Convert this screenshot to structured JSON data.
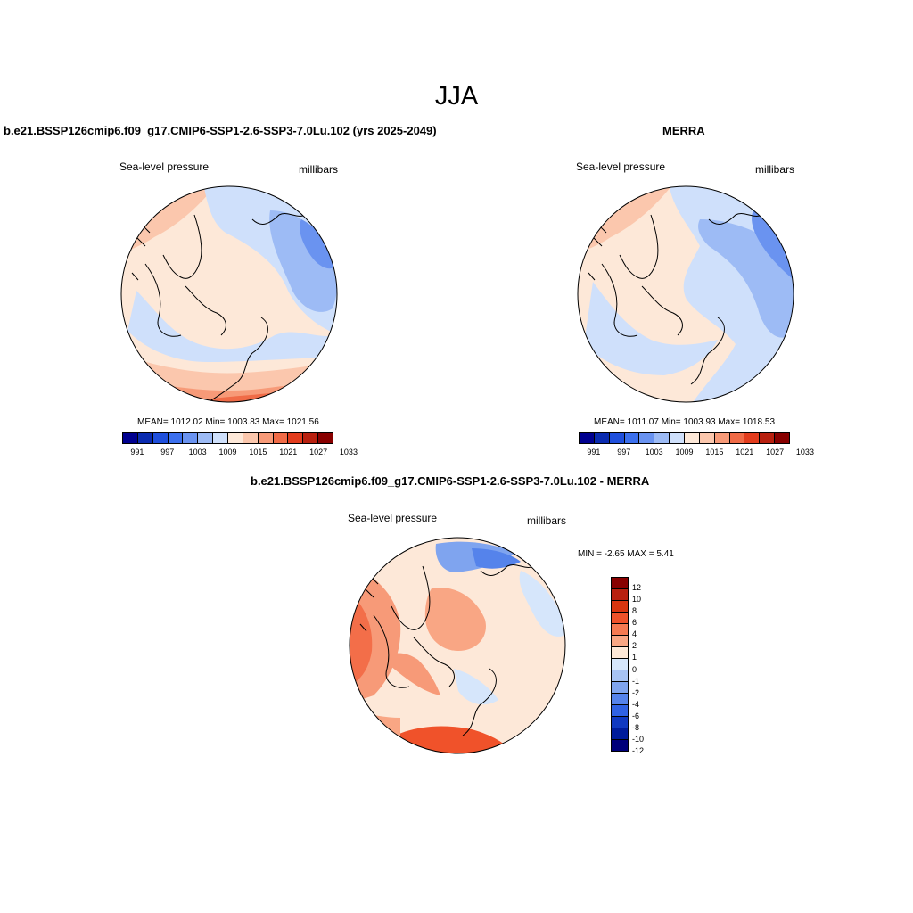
{
  "title": "JJA",
  "panel1": {
    "title": "b.e21.BSSP126cmip6.f09_g17.CMIP6-SSP1-2.6-SSP3-7.0Lu.102 (yrs 2025-2049)",
    "left_label": "Sea-level pressure",
    "right_label": "millibars",
    "stats": "MEAN= 1012.02  Min= 1003.83  Max= 1021.56"
  },
  "panel2": {
    "title": "MERRA",
    "left_label": "Sea-level pressure",
    "right_label": "millibars",
    "stats": "MEAN= 1011.07  Min= 1003.93  Max= 1018.53"
  },
  "panel3": {
    "title": "b.e21.BSSP126cmip6.f09_g17.CMIP6-SSP1-2.6-SSP3-7.0Lu.102 - MERRA",
    "left_label": "Sea-level pressure",
    "right_label": "millibars",
    "stats": "MIN =  -2.65 MAX =   5.41"
  },
  "slp_colorbar": {
    "colors": [
      "#00008f",
      "#0a2bb0",
      "#1f4fdc",
      "#3c70ee",
      "#6a93f0",
      "#9dbbf5",
      "#cfe0fb",
      "#fde8d8",
      "#fbc7ad",
      "#f79a78",
      "#f06b47",
      "#e23c1d",
      "#b8200f",
      "#880000"
    ],
    "tick_labels": [
      "991",
      "997",
      "1003",
      "1009",
      "1015",
      "1021",
      "1027",
      "1033"
    ]
  },
  "diff_colorbar": {
    "colors": [
      "#880000",
      "#b8200f",
      "#d9350f",
      "#f0522a",
      "#f67a52",
      "#f9a684",
      "#fde8d8",
      "#d6e6fb",
      "#a7c3f3",
      "#7fa4ef",
      "#5583eb",
      "#3062e3",
      "#1039c0",
      "#001c9a",
      "#00007a"
    ],
    "tick_labels": [
      "12",
      "10",
      "8",
      "6",
      "4",
      "2",
      "1",
      "0",
      "-1",
      "-2",
      "-4",
      "-6",
      "-8",
      "-10",
      "-12"
    ]
  },
  "chart_data": [
    {
      "type": "heatmap",
      "title": "b.e21.BSSP126cmip6.f09_g17.CMIP6-SSP1-2.6-SSP3-7.0Lu.102 (yrs 2025-2049)",
      "variable": "Sea-level pressure",
      "units": "millibars",
      "mean": 1012.02,
      "min": 1003.83,
      "max": 1021.56,
      "contour_levels": [
        991,
        994,
        997,
        1000,
        1003,
        1006,
        1009,
        1012,
        1015,
        1018,
        1021,
        1024,
        1027,
        1030,
        1033
      ]
    },
    {
      "type": "heatmap",
      "title": "MERRA",
      "variable": "Sea-level pressure",
      "units": "millibars",
      "mean": 1011.07,
      "min": 1003.93,
      "max": 1018.53,
      "contour_levels": [
        991,
        994,
        997,
        1000,
        1003,
        1006,
        1009,
        1012,
        1015,
        1018,
        1021,
        1024,
        1027,
        1030,
        1033
      ]
    },
    {
      "type": "heatmap",
      "title": "b.e21.BSSP126cmip6.f09_g17.CMIP6-SSP1-2.6-SSP3-7.0Lu.102 - MERRA",
      "variable": "Sea-level pressure",
      "units": "millibars",
      "min": -2.65,
      "max": 5.41,
      "contour_levels": [
        -12,
        -10,
        -8,
        -6,
        -4,
        -2,
        -1,
        0,
        1,
        2,
        4,
        6,
        8,
        10,
        12
      ]
    }
  ]
}
